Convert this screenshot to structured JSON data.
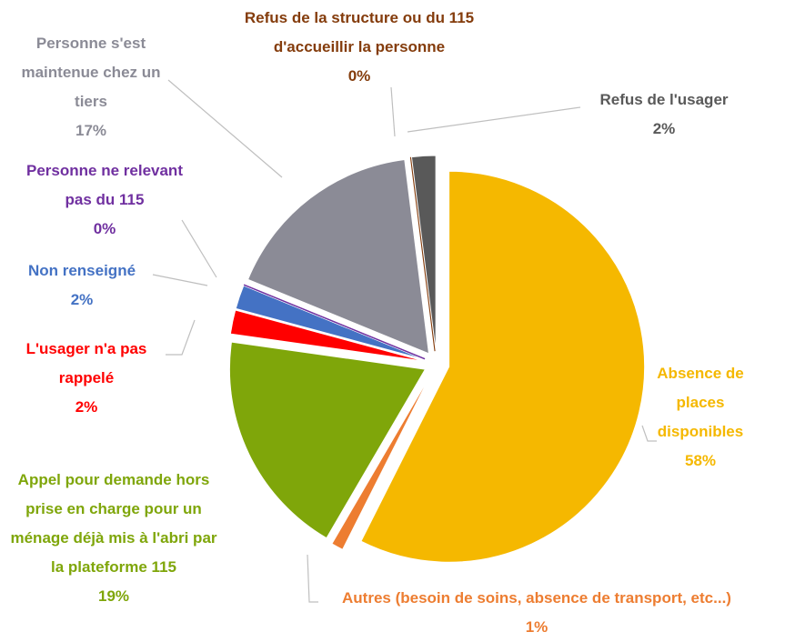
{
  "chart_data": {
    "type": "pie",
    "categories": [
      "Absence de places disponibles",
      "Autres (besoin de soins, absence de transport, etc...)",
      "Appel pour demande hors prise en charge pour un ménage déjà mis à l'abri par la plateforme 115",
      "L'usager n'a pas rappelé",
      "Non renseigné",
      "Personne ne relevant pas du 115",
      "Personne s'est maintenue chez un tiers",
      "Refus de la structure ou du 115 d'accueillir la personne",
      "Refus de l'usager"
    ],
    "values": [
      58,
      1,
      19,
      2,
      2,
      0,
      17,
      0,
      2
    ],
    "value_labels": [
      "58%",
      "1%",
      "19%",
      "2%",
      "2%",
      "0%",
      "17%",
      "0%",
      "2%"
    ],
    "colors": [
      "#f5b800",
      "#ed7d31",
      "#7fa60a",
      "#ff0000",
      "#4472c4",
      "#7030a0",
      "#8b8b96",
      "#843c0c",
      "#595959"
    ]
  }
}
